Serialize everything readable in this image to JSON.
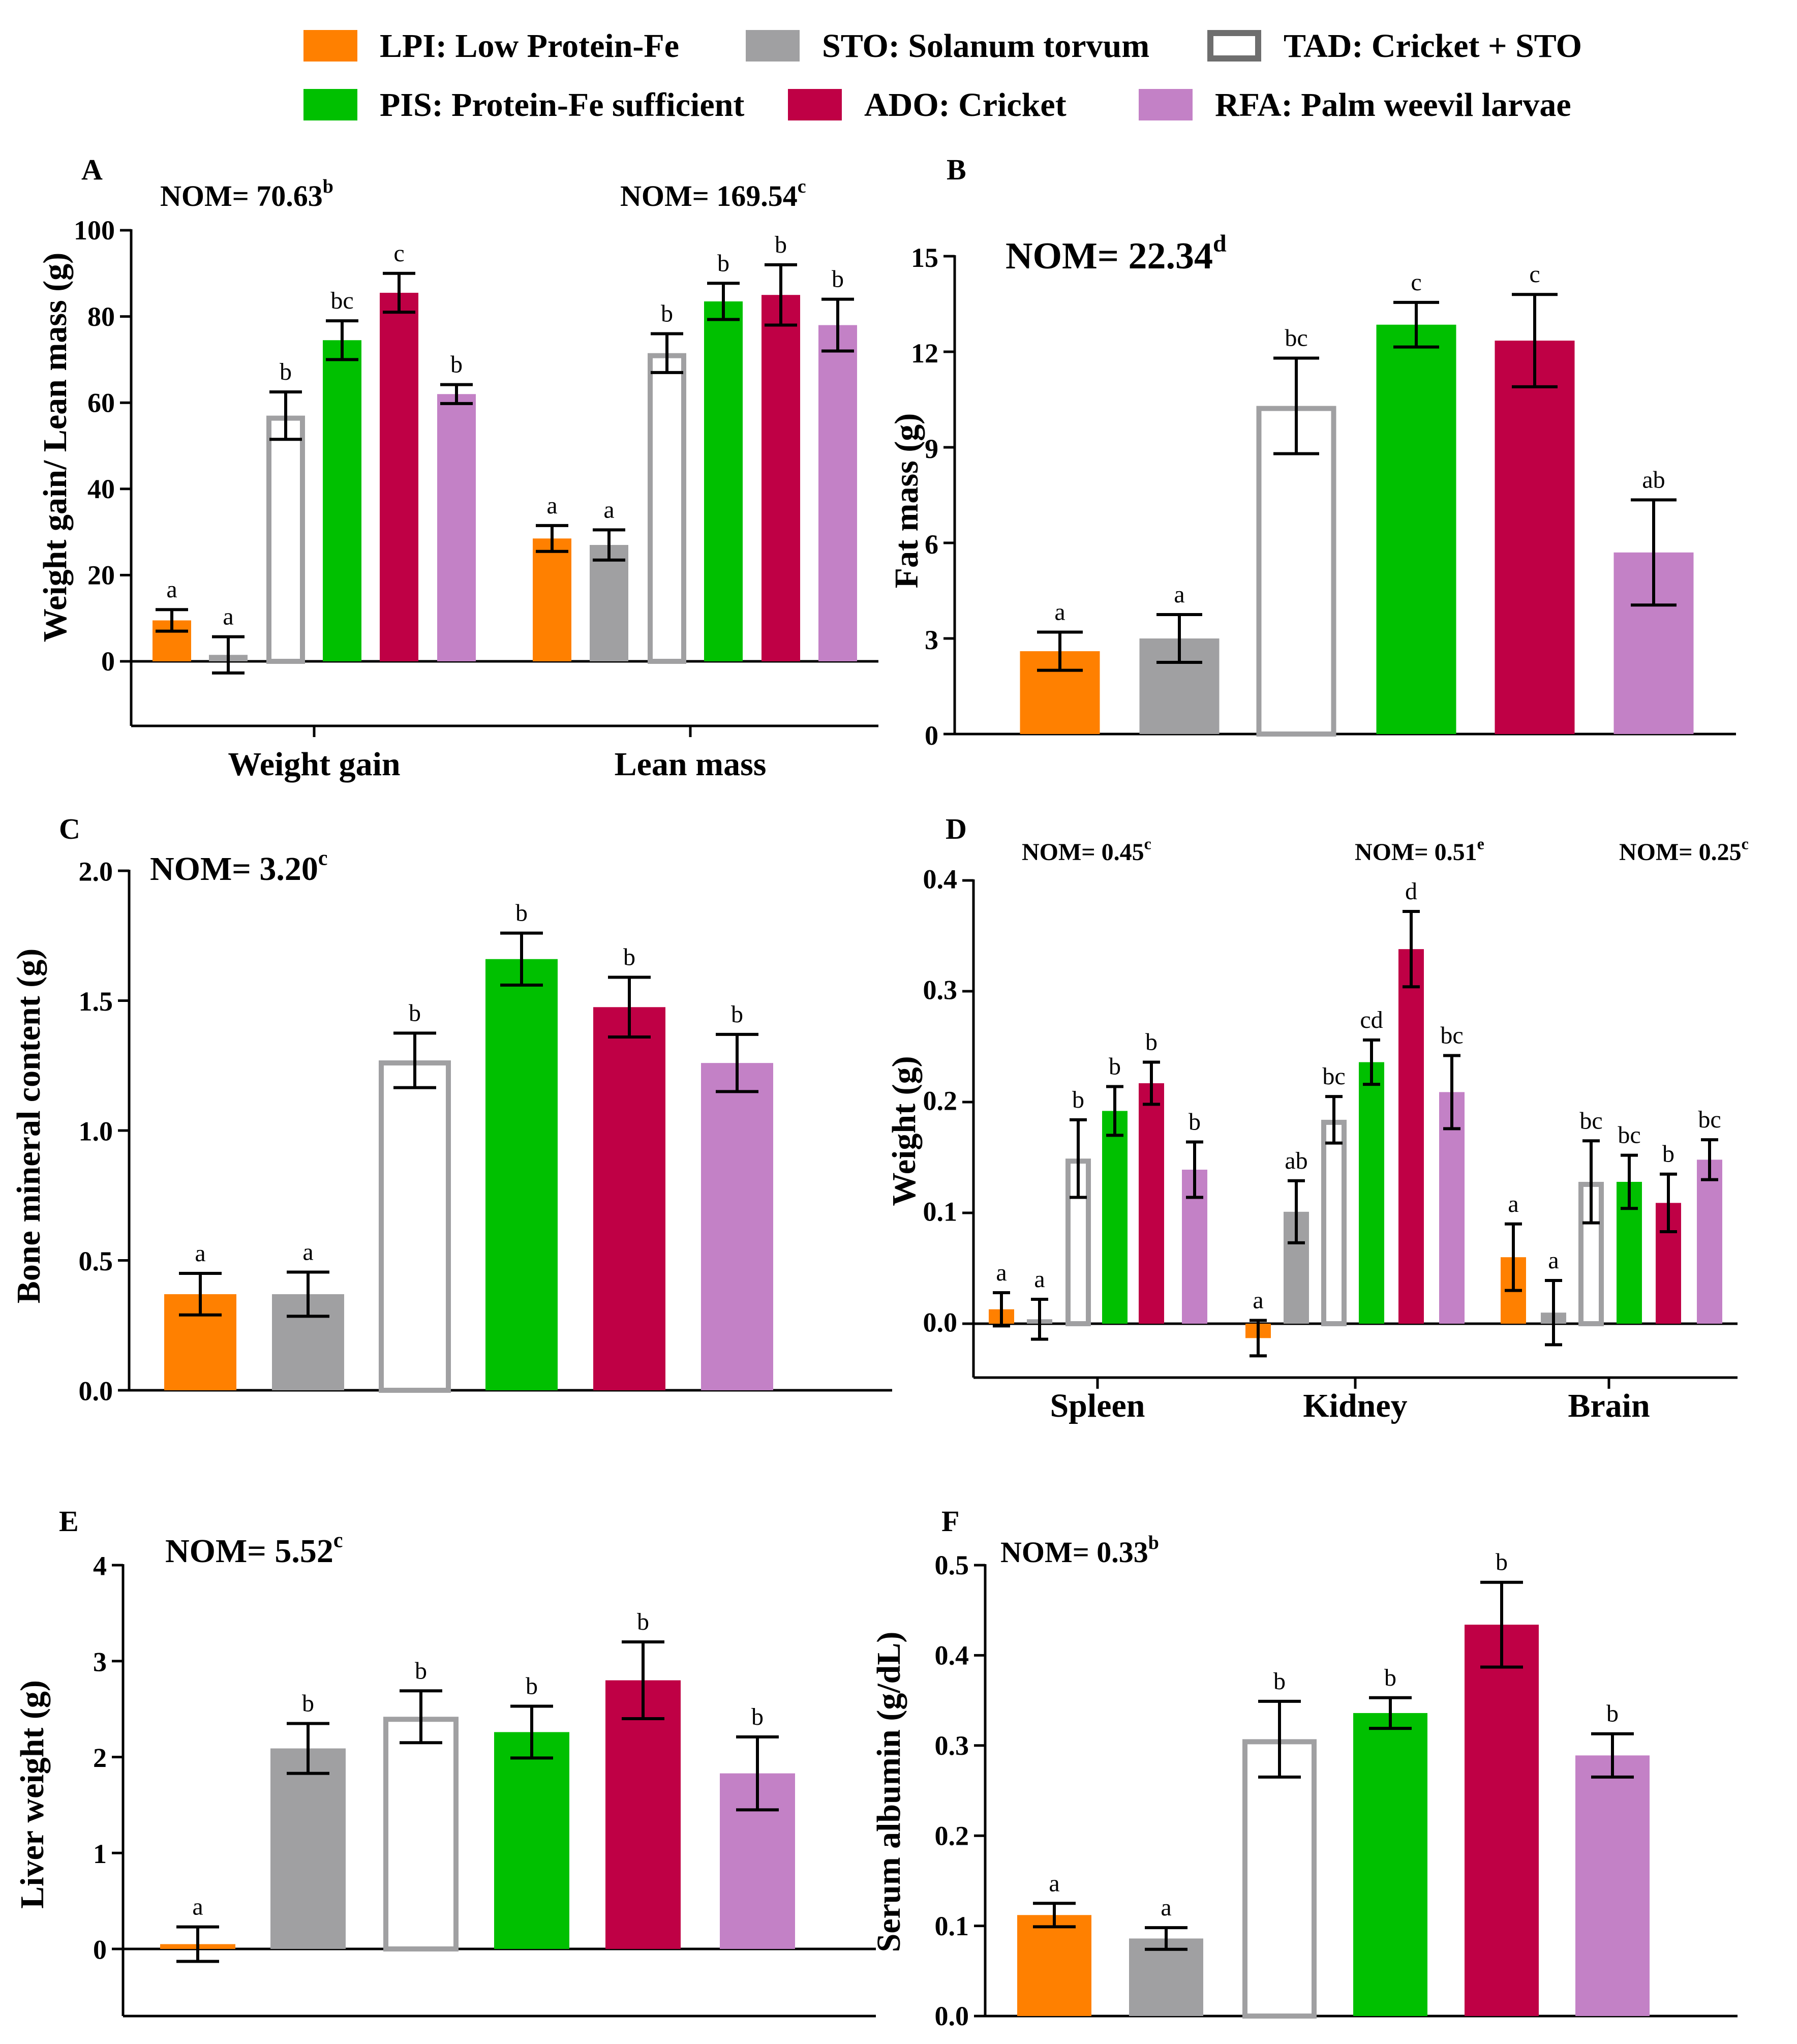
{
  "legend": [
    {
      "code": "LPI",
      "label": "LPI: Low Protein-Fe",
      "color": "#ff8000",
      "style": "filled"
    },
    {
      "code": "STO",
      "label": "STO: Solanum torvum",
      "color": "#a0a0a2",
      "style": "filled"
    },
    {
      "code": "TAD",
      "label": "TAD: Cricket + STO",
      "color": "#a0a0a2",
      "style": "outline"
    },
    {
      "code": "PIS",
      "label": "PIS: Protein-Fe sufficient",
      "color": "#00c000",
      "style": "filled"
    },
    {
      "code": "ADO",
      "label": "ADO: Cricket",
      "color": "#bf0045",
      "style": "filled"
    },
    {
      "code": "RFA",
      "label": "RFA: Palm weevil larvae",
      "color": "#c381c6",
      "style": "filled"
    }
  ],
  "chart_data": [
    {
      "panel": "A",
      "type": "bar",
      "ylabel": "Weight gain/ Lean mass (g)",
      "ylim": [
        -15,
        100
      ],
      "yticks": [
        "-",
        "0",
        "20",
        "40",
        "60",
        "80",
        "100"
      ],
      "categories": [
        "Weight gain",
        "Lean mass"
      ],
      "nom": [
        {
          "base": "NOM= 70.63",
          "sup": "b"
        },
        {
          "base": "NOM= 169.54",
          "sup": "c"
        }
      ],
      "series": [
        {
          "name": "LPI",
          "values": [
            9.5,
            28.5
          ],
          "errors": [
            2.5,
            3
          ],
          "letters": [
            "a",
            "a"
          ]
        },
        {
          "name": "STO",
          "values": [
            1.5,
            27
          ],
          "errors": [
            4.2,
            3.5
          ],
          "letters": [
            "a",
            "a"
          ]
        },
        {
          "name": "TAD",
          "values": [
            57,
            71.5
          ],
          "errors": [
            5.5,
            4.5
          ],
          "letters": [
            "b",
            "b"
          ]
        },
        {
          "name": "PIS",
          "values": [
            74.5,
            83.5
          ],
          "errors": [
            4.5,
            4.2
          ],
          "letters": [
            "bc",
            "b"
          ]
        },
        {
          "name": "ADO",
          "values": [
            85.5,
            85
          ],
          "errors": [
            4.5,
            7
          ],
          "letters": [
            "c",
            "b"
          ]
        },
        {
          "name": "RFA",
          "values": [
            62,
            78
          ],
          "errors": [
            2.2,
            6
          ],
          "letters": [
            "b",
            "b"
          ]
        }
      ]
    },
    {
      "panel": "B",
      "type": "bar",
      "ylabel": "Fat mass (g)",
      "ylim": [
        0,
        15
      ],
      "yticks": [
        "0",
        "3",
        "6",
        "9",
        "12",
        "15"
      ],
      "categories": [
        ""
      ],
      "nom": [
        {
          "base": "NOM= 22.34",
          "sup": "d"
        }
      ],
      "series": [
        {
          "name": "LPI",
          "values": [
            2.6
          ],
          "errors": [
            0.6
          ],
          "letters": [
            "a"
          ]
        },
        {
          "name": "STO",
          "values": [
            3.0
          ],
          "errors": [
            0.75
          ],
          "letters": [
            "a"
          ]
        },
        {
          "name": "TAD",
          "values": [
            10.3
          ],
          "errors": [
            1.5
          ],
          "letters": [
            "bc"
          ]
        },
        {
          "name": "PIS",
          "values": [
            12.85
          ],
          "errors": [
            0.7
          ],
          "letters": [
            "c"
          ]
        },
        {
          "name": "ADO",
          "values": [
            12.35
          ],
          "errors": [
            1.45
          ],
          "letters": [
            "c"
          ]
        },
        {
          "name": "RFA",
          "values": [
            5.7
          ],
          "errors": [
            1.65
          ],
          "letters": [
            "ab"
          ]
        }
      ]
    },
    {
      "panel": "C",
      "type": "bar",
      "ylabel": "Bone mineral content (g)",
      "ylim": [
        0,
        2.0
      ],
      "yticks": [
        "0.0",
        "0.5",
        "1.0",
        "1.5",
        "2.0"
      ],
      "categories": [
        ""
      ],
      "nom": [
        {
          "base": "NOM= 3.20",
          "sup": "c"
        }
      ],
      "series": [
        {
          "name": "LPI",
          "values": [
            0.37
          ],
          "errors": [
            0.08
          ],
          "letters": [
            "a"
          ]
        },
        {
          "name": "STO",
          "values": [
            0.37
          ],
          "errors": [
            0.085
          ],
          "letters": [
            "a"
          ]
        },
        {
          "name": "TAD",
          "values": [
            1.27
          ],
          "errors": [
            0.105
          ],
          "letters": [
            "b"
          ]
        },
        {
          "name": "PIS",
          "values": [
            1.66
          ],
          "errors": [
            0.1
          ],
          "letters": [
            "b"
          ]
        },
        {
          "name": "ADO",
          "values": [
            1.475
          ],
          "errors": [
            0.115
          ],
          "letters": [
            "b"
          ]
        },
        {
          "name": "RFA",
          "values": [
            1.26
          ],
          "errors": [
            0.11
          ],
          "letters": [
            "b"
          ]
        }
      ]
    },
    {
      "panel": "D",
      "type": "bar",
      "ylabel": "Weight (g)",
      "ylim": [
        -0.05,
        0.4
      ],
      "yticks": [
        "0.0",
        "0.1",
        "0.2",
        "0.3",
        "0.4"
      ],
      "categories": [
        "Spleen",
        "Kidney",
        "Brain"
      ],
      "nom": [
        {
          "base": "NOM= 0.45",
          "sup": "c"
        },
        {
          "base": "NOM= 0.51",
          "sup": "e"
        },
        {
          "base": "NOM= 0.25",
          "sup": "c"
        }
      ],
      "series": [
        {
          "name": "LPI",
          "values": [
            0.013,
            -0.013,
            0.06
          ],
          "errors": [
            0.015,
            0.016,
            0.03
          ],
          "letters": [
            "a",
            "a",
            "a"
          ]
        },
        {
          "name": "STO",
          "values": [
            0.004,
            0.101,
            0.01
          ],
          "errors": [
            0.018,
            0.028,
            0.029
          ],
          "letters": [
            "a",
            "ab",
            "a"
          ]
        },
        {
          "name": "TAD",
          "values": [
            0.149,
            0.184,
            0.128
          ],
          "errors": [
            0.035,
            0.021,
            0.037
          ],
          "letters": [
            "b",
            "bc",
            "bc"
          ]
        },
        {
          "name": "PIS",
          "values": [
            0.192,
            0.236,
            0.128
          ],
          "errors": [
            0.022,
            0.02,
            0.024
          ],
          "letters": [
            "b",
            "cd",
            "bc"
          ]
        },
        {
          "name": "ADO",
          "values": [
            0.217,
            0.338,
            0.109
          ],
          "errors": [
            0.019,
            0.034,
            0.026
          ],
          "letters": [
            "b",
            "d",
            "b"
          ]
        },
        {
          "name": "RFA",
          "values": [
            0.139,
            0.209,
            0.148
          ],
          "errors": [
            0.025,
            0.033,
            0.018
          ],
          "letters": [
            "b",
            "bc",
            "bc"
          ]
        }
      ]
    },
    {
      "panel": "E",
      "type": "bar",
      "ylabel": "Liver weight (g)",
      "ylim": [
        -0.7,
        4
      ],
      "yticks": [
        "0",
        "1",
        "2",
        "3",
        "4"
      ],
      "categories": [
        ""
      ],
      "nom": [
        {
          "base": "NOM= 5.52",
          "sup": "c"
        }
      ],
      "series": [
        {
          "name": "LPI",
          "values": [
            0.05
          ],
          "errors": [
            0.18
          ],
          "letters": [
            "a"
          ]
        },
        {
          "name": "STO",
          "values": [
            2.09
          ],
          "errors": [
            0.26
          ],
          "letters": [
            "b"
          ]
        },
        {
          "name": "TAD",
          "values": [
            2.42
          ],
          "errors": [
            0.27
          ],
          "letters": [
            "b"
          ]
        },
        {
          "name": "PIS",
          "values": [
            2.26
          ],
          "errors": [
            0.27
          ],
          "letters": [
            "b"
          ]
        },
        {
          "name": "ADO",
          "values": [
            2.8
          ],
          "errors": [
            0.4
          ],
          "letters": [
            "b"
          ]
        },
        {
          "name": "RFA",
          "values": [
            1.83
          ],
          "errors": [
            0.38
          ],
          "letters": [
            "b"
          ]
        }
      ]
    },
    {
      "panel": "F",
      "type": "bar",
      "ylabel": "Serum albumin (g/dL)",
      "ylim": [
        0,
        0.5
      ],
      "yticks": [
        "0.0",
        "0.1",
        "0.2",
        "0.3",
        "0.4",
        "0.5"
      ],
      "categories": [
        ""
      ],
      "nom": [
        {
          "base": "NOM= 0.33",
          "sup": "b"
        }
      ],
      "series": [
        {
          "name": "LPI",
          "values": [
            0.112
          ],
          "errors": [
            0.013
          ],
          "letters": [
            "a"
          ]
        },
        {
          "name": "STO",
          "values": [
            0.086
          ],
          "errors": [
            0.012
          ],
          "letters": [
            "a"
          ]
        },
        {
          "name": "TAD",
          "values": [
            0.307
          ],
          "errors": [
            0.042
          ],
          "letters": [
            "b"
          ]
        },
        {
          "name": "PIS",
          "values": [
            0.336
          ],
          "errors": [
            0.017
          ],
          "letters": [
            "b"
          ]
        },
        {
          "name": "ADO",
          "values": [
            0.434
          ],
          "errors": [
            0.047
          ],
          "letters": [
            "b"
          ]
        },
        {
          "name": "RFA",
          "values": [
            0.289
          ],
          "errors": [
            0.024
          ],
          "letters": [
            "b"
          ]
        }
      ]
    }
  ]
}
